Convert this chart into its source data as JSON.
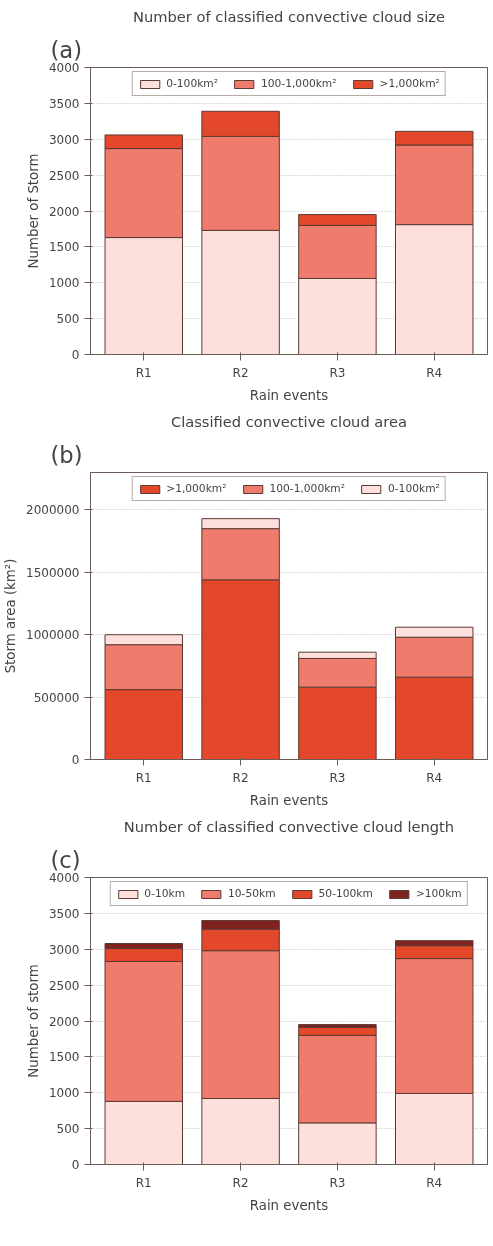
{
  "chart_data": [
    {
      "type": "bar",
      "stacked": true,
      "title": "Number of classified convective cloud size",
      "xlabel": "Rain events",
      "ylabel": "Number of Storm",
      "annotations": [
        "(a)"
      ],
      "categories": [
        "R1",
        "R2",
        "R3",
        "R4"
      ],
      "ylim": [
        0,
        4000
      ],
      "yticks": [
        0,
        500,
        1000,
        1500,
        2000,
        2500,
        3000,
        3500,
        4000
      ],
      "grid": "y",
      "legend": "top",
      "series": [
        {
          "name": "0-100km²",
          "color": "#fde0dc",
          "values": [
            1630,
            1730,
            1060,
            1810
          ]
        },
        {
          "name": "100-1,000km²",
          "color": "#ef7b6c",
          "values": [
            1240,
            1310,
            740,
            1110
          ]
        },
        {
          "name": ">1,000km²",
          "color": "#e4482a",
          "values": [
            190,
            350,
            150,
            190
          ]
        }
      ]
    },
    {
      "type": "bar",
      "stacked": true,
      "title": "Classified convective cloud area",
      "xlabel": "Rain events",
      "ylabel": "Storm area (km²)",
      "annotations": [
        "(b)"
      ],
      "categories": [
        "R1",
        "R2",
        "R3",
        "R4"
      ],
      "ylim": [
        0,
        2300000
      ],
      "yticks": [
        0,
        500000,
        1000000,
        1500000,
        2000000
      ],
      "grid": "y",
      "legend": "top",
      "series": [
        {
          "name": ">1,000km²",
          "color": "#e4482a",
          "values": [
            560000,
            1440000,
            580000,
            660000
          ]
        },
        {
          "name": "100-1,000km²",
          "color": "#ef7b6c",
          "values": [
            360000,
            410000,
            230000,
            320000
          ]
        },
        {
          "name": "0-100km²",
          "color": "#fde0dc",
          "values": [
            80000,
            80000,
            50000,
            80000
          ]
        }
      ]
    },
    {
      "type": "bar",
      "stacked": true,
      "title": "Number of classified convective cloud length",
      "xlabel": "Rain events",
      "ylabel": "Number of storm",
      "annotations": [
        "(c)"
      ],
      "categories": [
        "R1",
        "R2",
        "R3",
        "R4"
      ],
      "ylim": [
        0,
        4000
      ],
      "yticks": [
        0,
        500,
        1000,
        1500,
        2000,
        2500,
        3000,
        3500,
        4000
      ],
      "grid": "y",
      "legend": "top",
      "series": [
        {
          "name": "0-10km",
          "color": "#fde0dc",
          "values": [
            880,
            920,
            580,
            990
          ]
        },
        {
          "name": "10-50km",
          "color": "#ef7b6c",
          "values": [
            1950,
            2060,
            1220,
            1880
          ]
        },
        {
          "name": "50-100km",
          "color": "#e4482a",
          "values": [
            180,
            300,
            110,
            180
          ]
        },
        {
          "name": ">100km",
          "color": "#7f2320",
          "values": [
            70,
            120,
            40,
            70
          ]
        }
      ]
    }
  ]
}
